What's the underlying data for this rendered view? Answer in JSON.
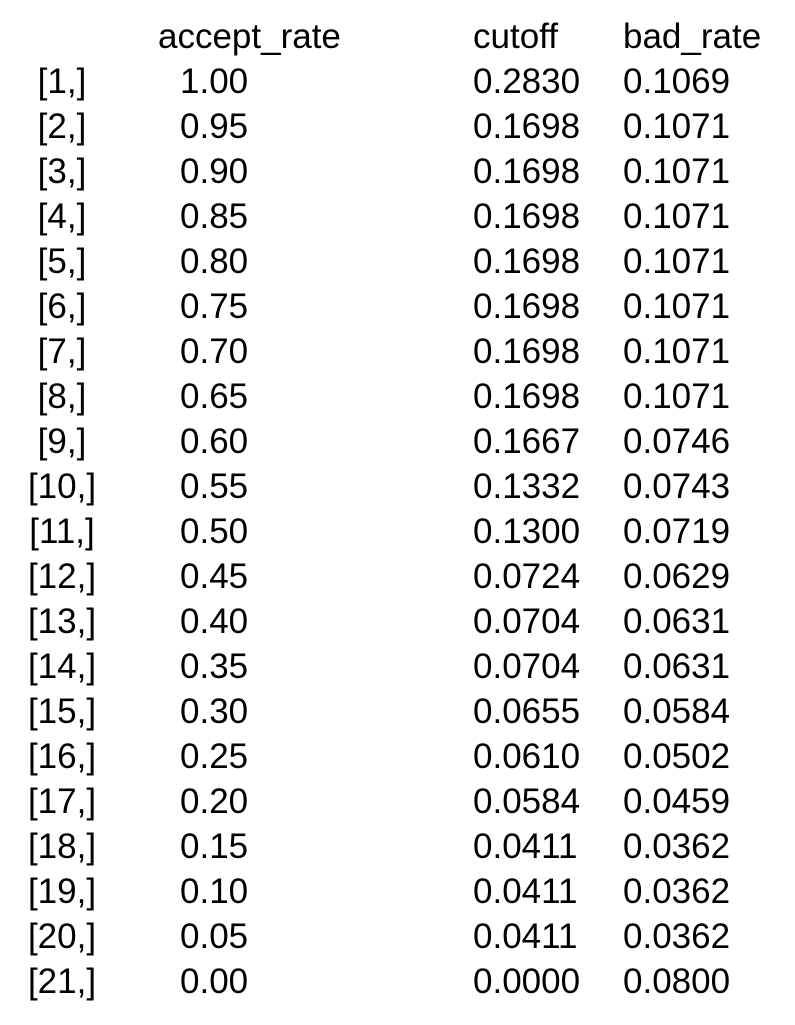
{
  "table": {
    "headers": {
      "accept_rate": "accept_rate",
      "cutoff": "cutoff",
      "bad_rate": "bad_rate"
    },
    "rows": [
      {
        "index": "[1,]",
        "accept_rate": "1.00",
        "cutoff": "0.2830",
        "bad_rate": "0.1069"
      },
      {
        "index": "[2,]",
        "accept_rate": "0.95",
        "cutoff": "0.1698",
        "bad_rate": "0.1071"
      },
      {
        "index": "[3,]",
        "accept_rate": "0.90",
        "cutoff": "0.1698",
        "bad_rate": "0.1071"
      },
      {
        "index": "[4,]",
        "accept_rate": "0.85",
        "cutoff": "0.1698",
        "bad_rate": "0.1071"
      },
      {
        "index": "[5,]",
        "accept_rate": "0.80",
        "cutoff": "0.1698",
        "bad_rate": "0.1071"
      },
      {
        "index": "[6,]",
        "accept_rate": "0.75",
        "cutoff": "0.1698",
        "bad_rate": "0.1071"
      },
      {
        "index": "[7,]",
        "accept_rate": "0.70",
        "cutoff": "0.1698",
        "bad_rate": "0.1071"
      },
      {
        "index": "[8,]",
        "accept_rate": "0.65",
        "cutoff": "0.1698",
        "bad_rate": "0.1071"
      },
      {
        "index": "[9,]",
        "accept_rate": "0.60",
        "cutoff": "0.1667",
        "bad_rate": "0.0746"
      },
      {
        "index": "[10,]",
        "accept_rate": "0.55",
        "cutoff": "0.1332",
        "bad_rate": "0.0743"
      },
      {
        "index": "[11,]",
        "accept_rate": "0.50",
        "cutoff": "0.1300",
        "bad_rate": "0.0719"
      },
      {
        "index": "[12,]",
        "accept_rate": "0.45",
        "cutoff": "0.0724",
        "bad_rate": "0.0629"
      },
      {
        "index": "[13,]",
        "accept_rate": "0.40",
        "cutoff": "0.0704",
        "bad_rate": "0.0631"
      },
      {
        "index": "[14,]",
        "accept_rate": "0.35",
        "cutoff": "0.0704",
        "bad_rate": "0.0631"
      },
      {
        "index": "[15,]",
        "accept_rate": "0.30",
        "cutoff": "0.0655",
        "bad_rate": "0.0584"
      },
      {
        "index": "[16,]",
        "accept_rate": "0.25",
        "cutoff": "0.0610",
        "bad_rate": "0.0502"
      },
      {
        "index": "[17,]",
        "accept_rate": "0.20",
        "cutoff": "0.0584",
        "bad_rate": "0.0459"
      },
      {
        "index": "[18,]",
        "accept_rate": "0.15",
        "cutoff": "0.0411",
        "bad_rate": "0.0362"
      },
      {
        "index": "[19,]",
        "accept_rate": "0.10",
        "cutoff": "0.0411",
        "bad_rate": "0.0362"
      },
      {
        "index": "[20,]",
        "accept_rate": "0.05",
        "cutoff": "0.0411",
        "bad_rate": "0.0362"
      },
      {
        "index": "[21,]",
        "accept_rate": "0.00",
        "cutoff": "0.0000",
        "bad_rate": "0.0800"
      }
    ]
  }
}
